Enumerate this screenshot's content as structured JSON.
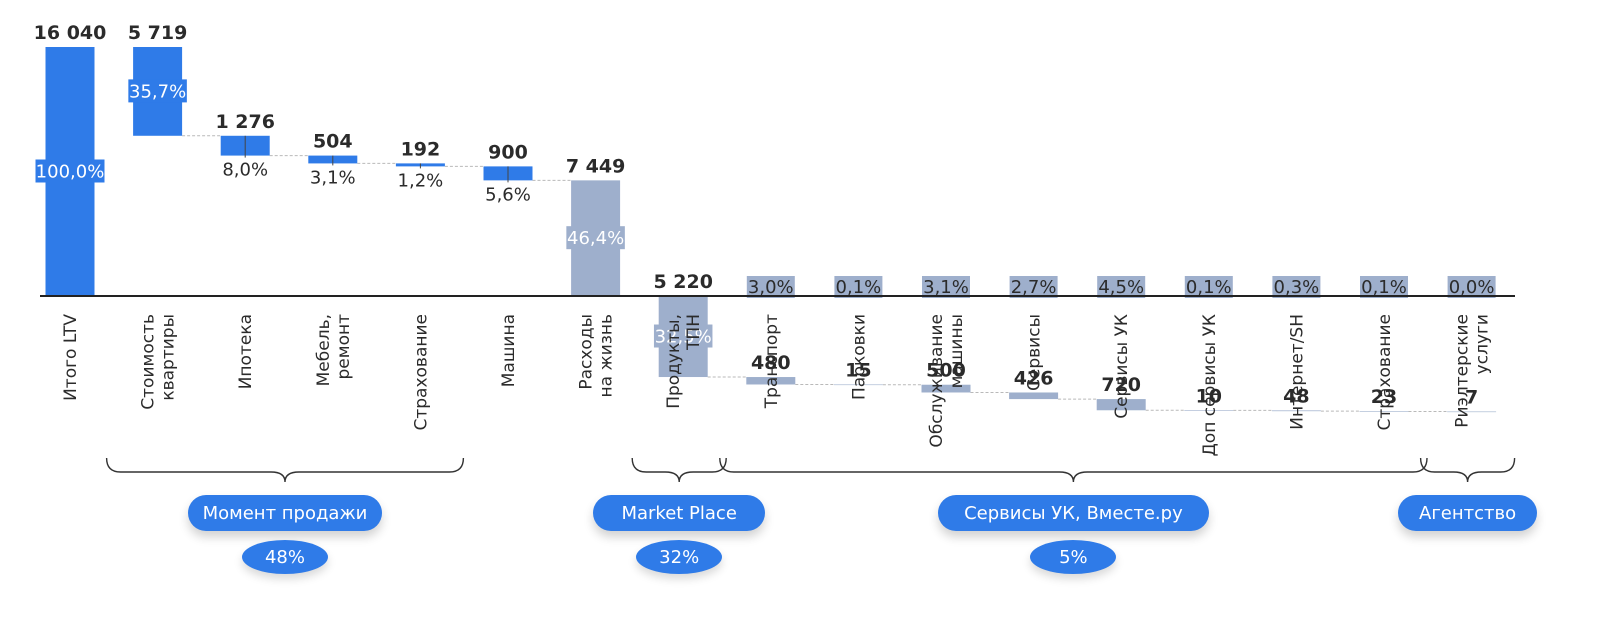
{
  "colors": {
    "blue": "#2f7be8",
    "gray": "#9eafcc",
    "axis": "#222222",
    "connector": "#b9b9b9"
  },
  "chart_data": {
    "type": "bar",
    "subtype": "waterfall",
    "title": "",
    "categories": [
      [
        "Итого LTV"
      ],
      [
        "Стоимость",
        "квартиры"
      ],
      [
        "Ипотека"
      ],
      [
        "Мебель,",
        "ремонт"
      ],
      [
        "Страхование"
      ],
      [
        "Машина"
      ],
      [
        "Расходы",
        "на жизнь"
      ],
      [
        "Продукты,",
        "ТПН"
      ],
      [
        "Транспорт"
      ],
      [
        "Парковки"
      ],
      [
        "Обслуживание",
        "машины"
      ],
      [
        "Сервисы"
      ],
      [
        "Сервисы УК"
      ],
      [
        "Доп сервисы УК"
      ],
      [
        "Интернет/SH"
      ],
      [
        "Страхование"
      ],
      [
        "Риэлтерские",
        "услуги"
      ]
    ],
    "values": [
      16040,
      5719,
      1276,
      504,
      192,
      900,
      7449,
      5220,
      480,
      15,
      500,
      426,
      720,
      10,
      48,
      23,
      7
    ],
    "value_labels": [
      "16 040",
      "5 719",
      "1 276",
      "504",
      "192",
      "900",
      "7 449",
      "5 220",
      "480",
      "15",
      "500",
      "426",
      "720",
      "10",
      "48",
      "23",
      "7"
    ],
    "percent_labels": [
      "100,0%",
      "35,7%",
      "8,0%",
      "3,1%",
      "1,2%",
      "5,6%",
      "46,4%",
      "32,5%",
      "3,0%",
      "0,1%",
      "3,1%",
      "2,7%",
      "4,5%",
      "0,1%",
      "0,3%",
      "0,1%",
      "0,0%"
    ],
    "bar_kind": [
      "total",
      "step",
      "step",
      "step",
      "step",
      "step",
      "sub",
      "sub",
      "sub",
      "sub",
      "sub",
      "sub",
      "sub",
      "sub",
      "sub",
      "sub",
      "sub"
    ],
    "bar_color": [
      "blue",
      "blue",
      "blue",
      "blue",
      "blue",
      "blue",
      "gray",
      "gray",
      "gray",
      "gray",
      "gray",
      "gray",
      "gray",
      "gray",
      "gray",
      "gray",
      "gray"
    ],
    "groups": [
      {
        "label": "Момент продажи",
        "share": "48%",
        "from": 1,
        "to": 4
      },
      {
        "label": "Market Place",
        "share": "32%",
        "from": 7,
        "to": 7
      },
      {
        "label": "Сервисы УК, Вместе.ру",
        "share": "5%",
        "from": 8,
        "to": 15
      },
      {
        "label": "Агентство",
        "share": "",
        "from": 16,
        "to": 16
      }
    ]
  }
}
